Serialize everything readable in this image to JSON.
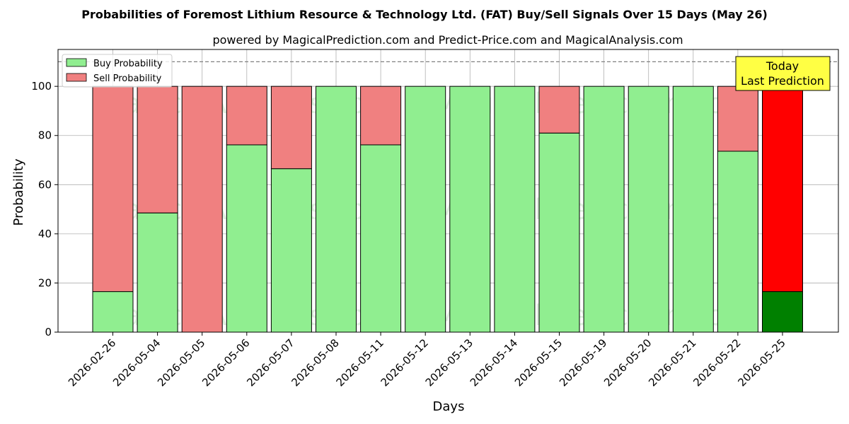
{
  "chart_data": {
    "type": "bar",
    "stacked": true,
    "title": "Probabilities of Foremost Lithium Resource & Technology Ltd. (FAT) Buy/Sell Signals Over 15 Days (May 26)",
    "subtitle": "powered by MagicalPrediction.com and Predict-Price.com and MagicalAnalysis.com",
    "xlabel": "Days",
    "ylabel": "Probability",
    "ylim": [
      0,
      115
    ],
    "yticks": [
      0,
      20,
      40,
      60,
      80,
      100
    ],
    "reference_line": 110,
    "grid": true,
    "legend_placement": "top-left",
    "categories": [
      "2026-02-26",
      "2026-05-04",
      "2026-05-05",
      "2026-05-06",
      "2026-05-07",
      "2026-05-08",
      "2026-05-11",
      "2026-05-12",
      "2026-05-13",
      "2026-05-14",
      "2026-05-15",
      "2026-05-19",
      "2026-05-20",
      "2026-05-21",
      "2026-05-22",
      "2026-05-25"
    ],
    "series": [
      {
        "name": "Buy Probability",
        "color": "#90ee90",
        "highlight_color": "#008000",
        "values": [
          16.5,
          48.5,
          0,
          76.2,
          66.5,
          100,
          76.2,
          100,
          100,
          100,
          81,
          100,
          100,
          100,
          73.6,
          16.5
        ]
      },
      {
        "name": "Sell Probability",
        "color": "#f08080",
        "highlight_color": "#ff0000",
        "values": [
          83.5,
          51.5,
          100,
          23.8,
          33.5,
          0,
          23.8,
          0,
          0,
          0,
          19,
          0,
          0,
          0,
          26.4,
          83.5
        ]
      }
    ],
    "highlight_index": 15,
    "annotation": {
      "lines": [
        "Today",
        "Last Prediction"
      ],
      "background": "#ffff44"
    },
    "watermarks": [
      "MagicalAnalysis.com",
      "MagicalPrediction.com"
    ]
  }
}
